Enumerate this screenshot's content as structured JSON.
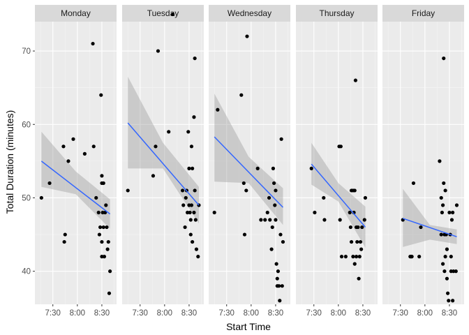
{
  "chart_data": {
    "type": "scatter",
    "facet_by": "day",
    "xlabel": "Start Time",
    "ylabel": "Total Duration (minutes)",
    "x_ticks": [
      "7:30",
      "8:00",
      "8:30"
    ],
    "x_tick_values_min": [
      450,
      480,
      510
    ],
    "xlim_min": [
      428,
      528
    ],
    "y_ticks": [
      40,
      50,
      60,
      70
    ],
    "ylim": [
      35.5,
      74
    ],
    "smooth": {
      "method": "lm",
      "color": "#3366FF",
      "ribbon": "grey"
    },
    "colors": {
      "panel_bg": "#EBEBEB",
      "strip_bg": "#D9D9D9",
      "grid_major": "#FFFFFF",
      "points": "#000000",
      "line": "#3366FF",
      "ribbon": "#999999"
    },
    "facets": [
      {
        "label": "Monday",
        "points": [
          [
            436,
            50
          ],
          [
            446,
            52
          ],
          [
            463,
            57
          ],
          [
            464,
            44
          ],
          [
            465,
            45
          ],
          [
            469,
            55
          ],
          [
            475,
            58
          ],
          [
            489,
            56
          ],
          [
            499,
            71
          ],
          [
            500,
            57
          ],
          [
            503,
            50
          ],
          [
            506,
            48
          ],
          [
            507,
            45
          ],
          [
            508,
            46
          ],
          [
            509,
            64
          ],
          [
            510,
            53
          ],
          [
            510,
            52
          ],
          [
            510,
            44
          ],
          [
            510,
            42
          ],
          [
            511,
            48
          ],
          [
            512,
            46
          ],
          [
            512,
            52
          ],
          [
            513,
            42
          ],
          [
            514,
            48
          ],
          [
            515,
            49
          ],
          [
            516,
            46
          ],
          [
            517,
            43
          ],
          [
            518,
            44
          ],
          [
            519,
            37
          ],
          [
            520,
            40
          ]
        ],
        "fit": {
          "x": [
            436,
            520
          ],
          "y": [
            55,
            47.8
          ],
          "ribbon_x": [
            436,
            478,
            520
          ],
          "ribbon_lo": [
            51.5,
            50.5,
            45.8
          ],
          "ribbon_hi": [
            59,
            53.6,
            49.8
          ]
        }
      },
      {
        "label": "Tuesday",
        "points": [
          [
            435,
            51
          ],
          [
            466,
            53
          ],
          [
            469,
            57
          ],
          [
            472,
            70
          ],
          [
            485,
            59
          ],
          [
            490,
            75
          ],
          [
            502,
            51
          ],
          [
            503,
            49
          ],
          [
            505,
            46
          ],
          [
            506,
            50
          ],
          [
            507,
            51
          ],
          [
            508,
            48
          ],
          [
            509,
            59
          ],
          [
            510,
            49
          ],
          [
            510,
            54
          ],
          [
            511,
            48
          ],
          [
            512,
            47
          ],
          [
            512,
            45
          ],
          [
            513,
            57
          ],
          [
            513,
            49
          ],
          [
            514,
            44
          ],
          [
            514,
            54
          ],
          [
            516,
            48
          ],
          [
            516,
            61
          ],
          [
            517,
            51
          ],
          [
            517,
            69
          ],
          [
            518,
            47
          ],
          [
            519,
            43
          ],
          [
            521,
            42
          ],
          [
            522,
            49
          ]
        ],
        "fit": {
          "x": [
            435,
            522
          ],
          "y": [
            60.2,
            49
          ],
          "ribbon_x": [
            435,
            478,
            522
          ],
          "ribbon_lo": [
            54,
            54,
            46.5
          ],
          "ribbon_hi": [
            66.5,
            57.5,
            51.5
          ]
        }
      },
      {
        "label": "Wednesday",
        "points": [
          [
            435,
            48
          ],
          [
            439,
            62
          ],
          [
            468,
            64
          ],
          [
            471,
            52
          ],
          [
            472,
            45
          ],
          [
            474,
            51
          ],
          [
            475,
            72
          ],
          [
            488,
            54
          ],
          [
            492,
            47
          ],
          [
            497,
            47
          ],
          [
            500,
            48
          ],
          [
            502,
            50
          ],
          [
            503,
            47
          ],
          [
            505,
            43
          ],
          [
            506,
            46
          ],
          [
            507,
            54
          ],
          [
            508,
            52
          ],
          [
            509,
            49
          ],
          [
            510,
            51
          ],
          [
            510,
            47
          ],
          [
            511,
            41
          ],
          [
            512,
            39
          ],
          [
            512,
            38
          ],
          [
            513,
            40
          ],
          [
            514,
            38
          ],
          [
            515,
            36
          ],
          [
            516,
            45
          ],
          [
            517,
            58
          ],
          [
            518,
            38
          ],
          [
            519,
            44
          ]
        ],
        "fit": {
          "x": [
            435,
            519
          ],
          "y": [
            58.3,
            48.7
          ],
          "ribbon_x": [
            435,
            477,
            519
          ],
          "ribbon_lo": [
            52.2,
            52,
            46.3
          ],
          "ribbon_hi": [
            64.2,
            55.6,
            51.3
          ]
        }
      },
      {
        "label": "Thursday",
        "points": [
          [
            447,
            54
          ],
          [
            451,
            48
          ],
          [
            462,
            50
          ],
          [
            463,
            47
          ],
          [
            481,
            57
          ],
          [
            482,
            47
          ],
          [
            483,
            57
          ],
          [
            484,
            42
          ],
          [
            489,
            42
          ],
          [
            494,
            48
          ],
          [
            495,
            46
          ],
          [
            496,
            51
          ],
          [
            496,
            44
          ],
          [
            498,
            42
          ],
          [
            498,
            51
          ],
          [
            499,
            48
          ],
          [
            500,
            51
          ],
          [
            500,
            41
          ],
          [
            501,
            66
          ],
          [
            502,
            46
          ],
          [
            502,
            42
          ],
          [
            503,
            44
          ],
          [
            504,
            46
          ],
          [
            505,
            39
          ],
          [
            506,
            42
          ],
          [
            507,
            44
          ],
          [
            508,
            43
          ],
          [
            509,
            46
          ],
          [
            512,
            47
          ],
          [
            513,
            50
          ]
        ],
        "fit": {
          "x": [
            447,
            513
          ],
          "y": [
            54.6,
            46
          ],
          "ribbon_x": [
            447,
            480,
            513
          ],
          "ribbon_lo": [
            51.8,
            49.5,
            43.2
          ],
          "ribbon_hi": [
            57.5,
            52,
            48.8
          ]
        }
      },
      {
        "label": "Friday",
        "points": [
          [
            453,
            47
          ],
          [
            462,
            42
          ],
          [
            463,
            42
          ],
          [
            464,
            42
          ],
          [
            466,
            52
          ],
          [
            473,
            42
          ],
          [
            475,
            46
          ],
          [
            498,
            55
          ],
          [
            500,
            45
          ],
          [
            500,
            50
          ],
          [
            501,
            48
          ],
          [
            502,
            41
          ],
          [
            502,
            49
          ],
          [
            503,
            52
          ],
          [
            503,
            69
          ],
          [
            504,
            40
          ],
          [
            504,
            45
          ],
          [
            505,
            42
          ],
          [
            505,
            51
          ],
          [
            506,
            45
          ],
          [
            507,
            43
          ],
          [
            507,
            39
          ],
          [
            508,
            37
          ],
          [
            509,
            36
          ],
          [
            510,
            48
          ],
          [
            511,
            45
          ],
          [
            512,
            42
          ],
          [
            512,
            40
          ],
          [
            513,
            47
          ],
          [
            514,
            48
          ],
          [
            514,
            36
          ],
          [
            515,
            40
          ],
          [
            518,
            40
          ],
          [
            519,
            49
          ]
        ],
        "fit": {
          "x": [
            453,
            519
          ],
          "y": [
            47.2,
            44.7
          ],
          "ribbon_x": [
            453,
            486,
            519
          ],
          "ribbon_lo": [
            43.3,
            44.3,
            43.7
          ],
          "ribbon_hi": [
            51.2,
            46.3,
            45.7
          ]
        }
      }
    ]
  }
}
